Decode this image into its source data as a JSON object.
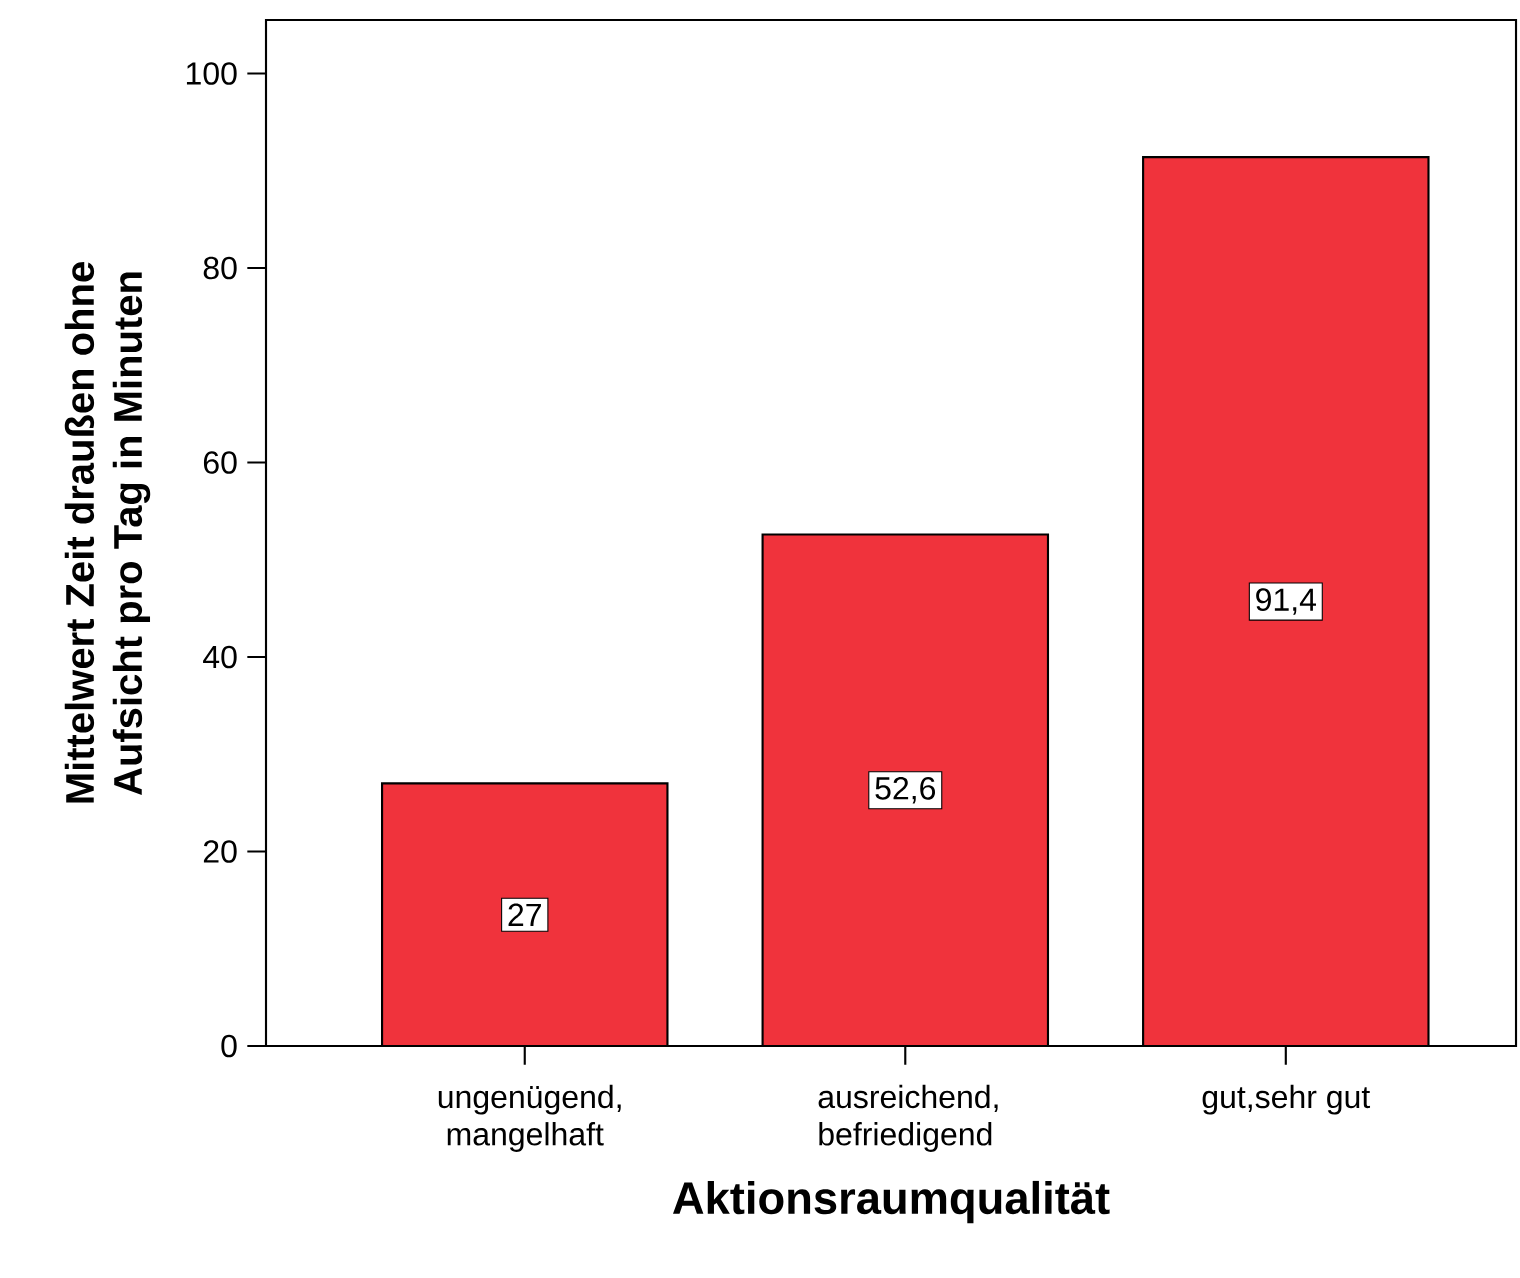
{
  "chart_data": {
    "type": "bar",
    "xlabel": "Aktionsraumqualität",
    "ylabel": "Mittelwert Zeit draußen ohne Aufsicht pro Tag in Minuten",
    "categories": [
      "ungenügend, mangelhaft",
      "ausreichend, befriedigend",
      "gut,sehr gut"
    ],
    "values": [
      27,
      52.6,
      91.4
    ],
    "value_labels": [
      "27",
      "52,6",
      "91,4"
    ],
    "color": "#f0333c",
    "ylim": [
      0,
      105.5
    ],
    "yticks": [
      0,
      20,
      40,
      60,
      80,
      100
    ]
  }
}
